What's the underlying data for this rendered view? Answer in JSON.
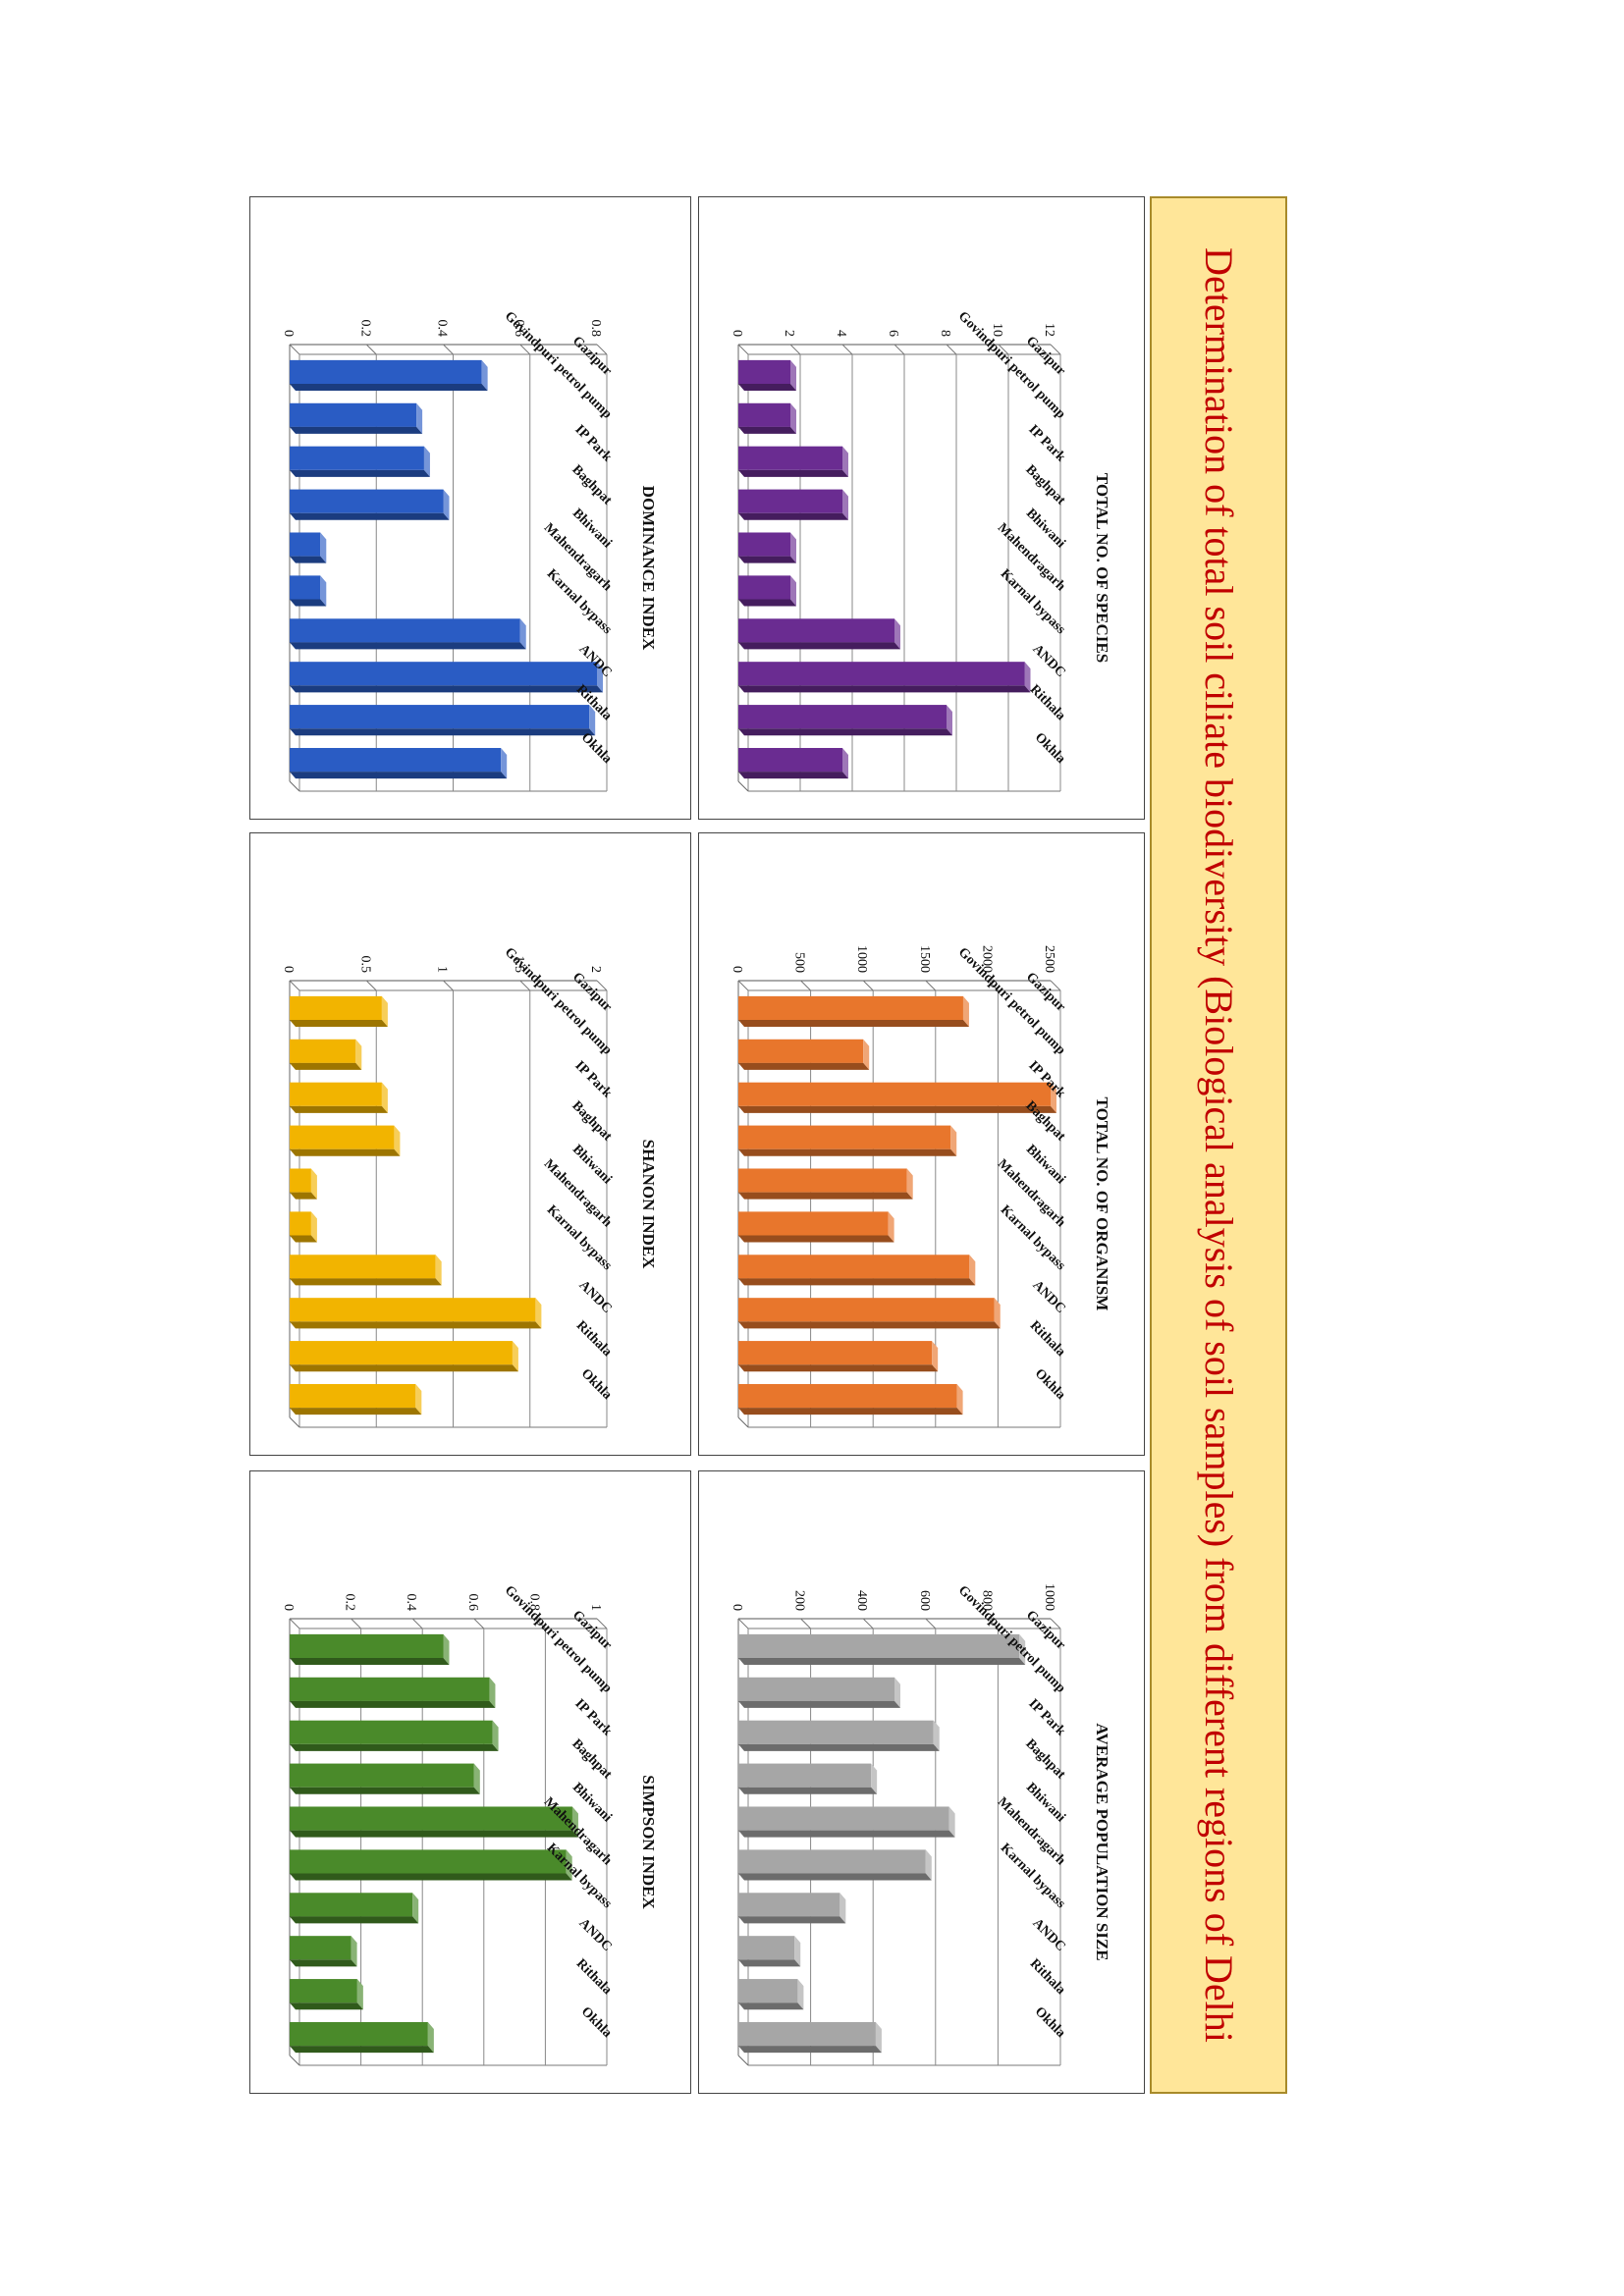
{
  "title": "Determination of total soil ciliate biodiversity (Biological analysis of soil samples) from different regions of Delhi",
  "chart_data": [
    {
      "id": "species",
      "type": "bar",
      "title": "TOTAL NO. OF SPECIES",
      "categories": [
        "Gazipur",
        "Govindpuri petrol pump",
        "IP Park",
        "Baghpat",
        "Bhiwani",
        "Mahendragarh",
        "Karnal bypass",
        "ANDC",
        "Rithala",
        "Okhla"
      ],
      "values": [
        2,
        2,
        4,
        4,
        2,
        2,
        6,
        11,
        8,
        4
      ],
      "yticks": [
        "0",
        "2",
        "4",
        "6",
        "8",
        "10",
        "12"
      ],
      "ylim": [
        0,
        12
      ],
      "color": "#6a2c91",
      "grid": true
    },
    {
      "id": "organism",
      "type": "bar",
      "title": "TOTAL NO. OF ORGANISM",
      "categories": [
        "Gazipur",
        "Govindpuri petrol pump",
        "IP Park",
        "Baghpat",
        "Bhiwani",
        "Mahendragarh",
        "Karnal bypass",
        "ANDC",
        "Rithala",
        "Okhla"
      ],
      "values": [
        1800,
        1000,
        2500,
        1700,
        1350,
        1200,
        1850,
        2050,
        1550,
        1750
      ],
      "yticks": [
        "0",
        "500",
        "1000",
        "1500",
        "2000",
        "2500"
      ],
      "ylim": [
        0,
        2500
      ],
      "color": "#e8762c",
      "grid": true
    },
    {
      "id": "population",
      "type": "bar",
      "title": "AVERAGE POPULATION SIZE",
      "categories": [
        "Gazipur",
        "Govindpuri petrol pump",
        "IP Park",
        "Baghpat",
        "Bhiwani",
        "Mahendragarh",
        "Karnal bypass",
        "ANDC",
        "Rithala",
        "Okhla"
      ],
      "values": [
        900,
        500,
        625,
        425,
        675,
        600,
        325,
        180,
        190,
        440
      ],
      "yticks": [
        "0",
        "200",
        "400",
        "600",
        "800",
        "1000"
      ],
      "ylim": [
        0,
        1000
      ],
      "color": "#a6a6a6",
      "grid": true
    },
    {
      "id": "dominance",
      "type": "bar",
      "title": "DOMINANCE INDEX",
      "categories": [
        "Gazipur",
        "Govindpuri petrol pump",
        "IP Park",
        "Baghpat",
        "Bhiwani",
        "Mahendragarh",
        "Karnal bypass",
        "ANDC",
        "Rithala",
        "Okhla"
      ],
      "values": [
        0.5,
        0.33,
        0.35,
        0.4,
        0.08,
        0.08,
        0.6,
        0.8,
        0.78,
        0.55
      ],
      "yticks": [
        "0",
        "0.2",
        "0.4",
        "0.6",
        "0.8"
      ],
      "ylim": [
        0,
        0.8
      ],
      "color": "#2a5cc4",
      "grid": true
    },
    {
      "id": "shanon",
      "type": "bar",
      "title": "SHANON INDEX",
      "categories": [
        "Gazipur",
        "Govindpuri petrol pump",
        "IP Park",
        "Baghpat",
        "Bhiwani",
        "Mahendragarh",
        "Karnal bypass",
        "ANDC",
        "Rithala",
        "Okhla"
      ],
      "values": [
        0.6,
        0.43,
        0.6,
        0.68,
        0.14,
        0.14,
        0.95,
        1.6,
        1.45,
        0.82
      ],
      "yticks": [
        "0",
        "0.5",
        "1",
        "1.5",
        "2"
      ],
      "ylim": [
        0,
        2
      ],
      "color": "#f2b400",
      "grid": true
    },
    {
      "id": "simpson",
      "type": "bar",
      "title": "SIMPSON INDEX",
      "categories": [
        "Gazipur",
        "Govindpuri petrol pump",
        "IP Park",
        "Baghpat",
        "Bhiwani",
        "Mahendragarh",
        "Karnal bypass",
        "ANDC",
        "Rithala",
        "Okhla"
      ],
      "values": [
        0.5,
        0.65,
        0.66,
        0.6,
        0.92,
        0.9,
        0.4,
        0.2,
        0.22,
        0.45
      ],
      "yticks": [
        "0",
        "0.2",
        "0.4",
        "0.6",
        "0.8",
        "1"
      ],
      "ylim": [
        0,
        1
      ],
      "color": "#4a8a2a",
      "grid": true
    }
  ]
}
